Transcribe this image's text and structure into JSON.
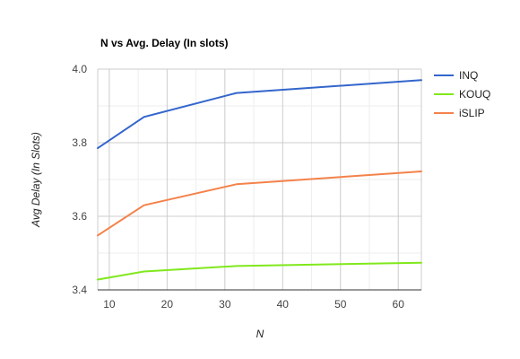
{
  "chart_data": {
    "type": "line",
    "title": "N vs Avg. Delay (In slots)",
    "xlabel": "N",
    "ylabel": "Avg Delay (In Slots)",
    "x": [
      8,
      16,
      32,
      64
    ],
    "xlim": [
      8,
      64
    ],
    "ylim": [
      3.4,
      4.0
    ],
    "xticks": [
      10,
      20,
      30,
      40,
      50,
      60
    ],
    "xtick_labels": [
      "10",
      "20",
      "30",
      "40",
      "50",
      "60"
    ],
    "yticks": [
      3.4,
      3.6,
      3.8,
      4.0
    ],
    "ytick_labels": [
      "3.4",
      "3.6",
      "3.8",
      "4.0"
    ],
    "grid": true,
    "legend_position": "right",
    "series": [
      {
        "name": "INQ",
        "color": "#3366cc",
        "values": [
          3.785,
          3.87,
          3.935,
          3.97
        ]
      },
      {
        "name": "KOUQ",
        "color": "#80e81c",
        "values": [
          3.428,
          3.45,
          3.465,
          3.474
        ]
      },
      {
        "name": "iSLIP",
        "color": "#f4824a",
        "values": [
          3.548,
          3.63,
          3.687,
          3.722
        ]
      }
    ]
  }
}
